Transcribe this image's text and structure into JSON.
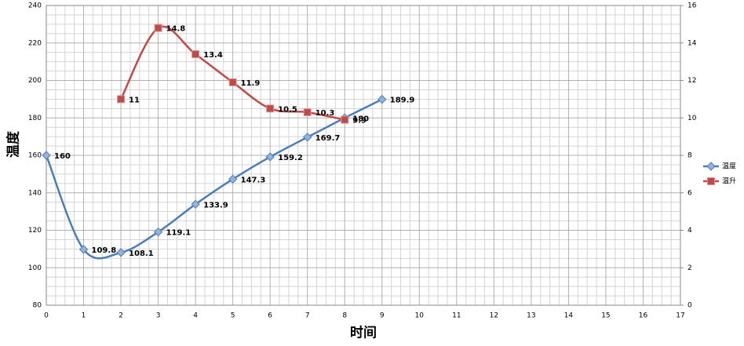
{
  "chart_data": {
    "type": "line",
    "x_label": "时间",
    "y_label": "温度",
    "xlim": [
      0,
      17
    ],
    "xticks": [
      0,
      1,
      2,
      3,
      4,
      5,
      6,
      7,
      8,
      9,
      10,
      11,
      12,
      13,
      14,
      15,
      16,
      17
    ],
    "ylim": [
      80,
      240
    ],
    "yticks": [
      80,
      100,
      120,
      140,
      160,
      180,
      200,
      220,
      240
    ],
    "y2lim": [
      0,
      16
    ],
    "y2ticks": [
      0,
      2,
      4,
      6,
      8,
      10,
      12,
      14,
      16
    ],
    "grid": true,
    "minor_divisions": 4,
    "smooth": true,
    "legend": "right",
    "series": [
      {
        "name": "温度",
        "color": "#4a7ebb",
        "marker": "diamond",
        "x": [
          0,
          1,
          2,
          3,
          4,
          5,
          6,
          7,
          8,
          9
        ],
        "values": [
          160,
          109.8,
          108.1,
          119.1,
          133.9,
          147.3,
          159.2,
          169.7,
          180,
          189.9
        ]
      },
      {
        "name": "温升",
        "color": "#be4b48",
        "marker": "square",
        "axis": "y2",
        "x": [
          2,
          3,
          4,
          5,
          6,
          7,
          8
        ],
        "values": [
          11,
          14.8,
          13.4,
          11.9,
          10.5,
          10.3,
          9.9
        ]
      }
    ]
  }
}
